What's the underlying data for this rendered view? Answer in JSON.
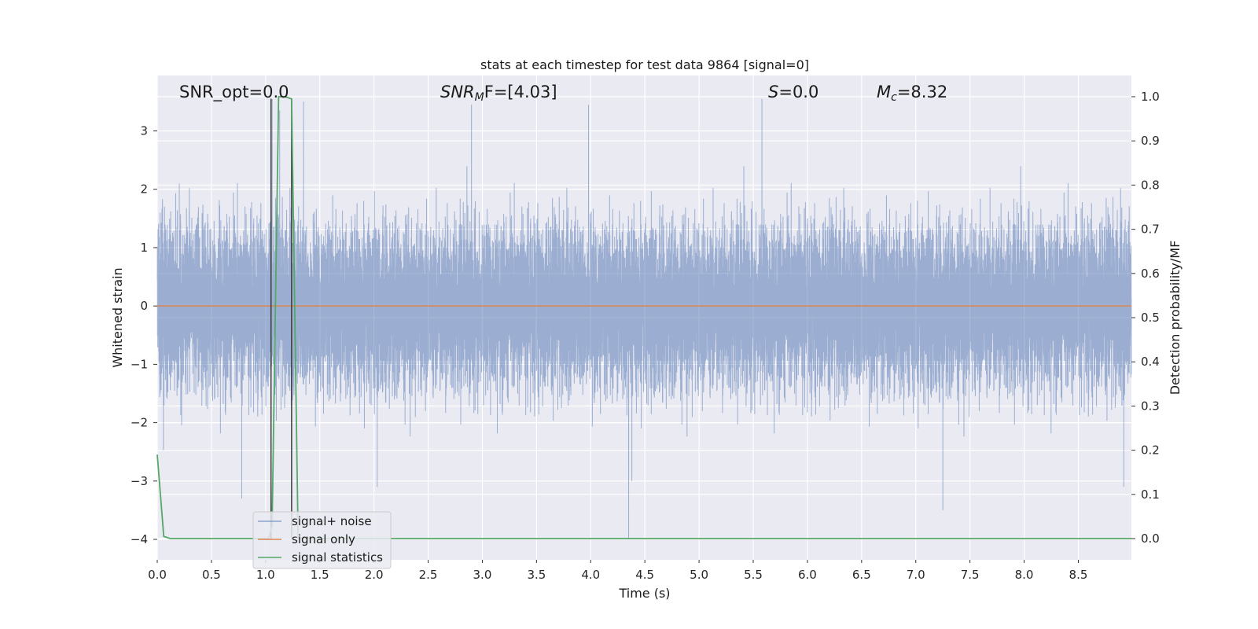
{
  "chart_data": {
    "type": "line",
    "title": "stats at each timestep for test data 9864 [signal=0]",
    "xlabel": "Time (s)",
    "ylabel": "Whitened strain",
    "y2label": "Detection probability/MF",
    "xlim": [
      0.0,
      8.99
    ],
    "ylim": [
      -4.35,
      3.95
    ],
    "y2lim": [
      -0.048,
      1.048
    ],
    "x_ticks": [
      0.0,
      0.5,
      1.0,
      1.5,
      2.0,
      2.5,
      3.0,
      3.5,
      4.0,
      4.5,
      5.0,
      5.5,
      6.0,
      6.5,
      7.0,
      7.5,
      8.0,
      8.5
    ],
    "x_tick_labels": [
      "0.0",
      "0.5",
      "1.0",
      "1.5",
      "2.0",
      "2.5",
      "3.0",
      "3.5",
      "4.0",
      "4.5",
      "5.0",
      "5.5",
      "6.0",
      "6.5",
      "7.0",
      "7.5",
      "8.0",
      "8.5"
    ],
    "y_ticks": [
      3,
      2,
      1,
      0,
      -1,
      -2,
      -3,
      -4
    ],
    "y_tick_labels": [
      "3",
      "2",
      "1",
      "0",
      "−1",
      "−2",
      "−3",
      "−4"
    ],
    "y2_ticks": [
      1.0,
      0.9,
      0.8,
      0.7,
      0.6,
      0.5,
      0.4,
      0.3,
      0.2,
      0.1,
      0.0
    ],
    "y2_tick_labels": [
      "1.0",
      "0.9",
      "0.8",
      "0.7",
      "0.6",
      "0.5",
      "0.4",
      "0.3",
      "0.2",
      "0.1",
      "0.0"
    ],
    "grid": true,
    "legend_position": "lower-left",
    "annotations": {
      "snr_opt": "SNR_opt=0.0",
      "snr_mf_main": "SNR",
      "snr_mf_sub": "M",
      "snr_mf_rest": "F=[4.03]",
      "s_main": "S",
      "s_rest": "=0.0",
      "mc_main": "M",
      "mc_sub": "c",
      "mc_rest": "=8.32"
    },
    "series": [
      {
        "name": "signal+ noise",
        "color": "#4c72b0",
        "alpha": 0.5,
        "axis": "left",
        "sample_rate": 2048,
        "amplitude_std": 0.9,
        "notable_peaks": [
          {
            "x": 0.78,
            "y": -3.3
          },
          {
            "x": 1.06,
            "y": 3.55
          },
          {
            "x": 1.13,
            "y": 3.35
          },
          {
            "x": 1.35,
            "y": 3.5
          },
          {
            "x": 2.03,
            "y": -3.1
          },
          {
            "x": 2.9,
            "y": 3.45
          },
          {
            "x": 3.98,
            "y": 3.45
          },
          {
            "x": 4.35,
            "y": -4.0
          },
          {
            "x": 4.38,
            "y": -3.0
          },
          {
            "x": 5.58,
            "y": 3.55
          },
          {
            "x": 7.25,
            "y": -3.5
          },
          {
            "x": 8.92,
            "y": -3.1
          }
        ]
      },
      {
        "name": "signal only",
        "color": "#dd8452",
        "axis": "left",
        "constant": 0.0
      },
      {
        "name": "signal statistics",
        "color": "#55a868",
        "axis": "right",
        "x": [
          0.0,
          0.06,
          0.12,
          0.18,
          1.0,
          1.03,
          1.06,
          1.12,
          1.18,
          1.24,
          1.3,
          1.36,
          1.42,
          8.99
        ],
        "values": [
          0.19,
          0.005,
          0.0,
          0.0,
          0.0,
          0.0,
          0.03,
          1.0,
          1.0,
          0.995,
          0.0,
          0.0,
          0.0,
          0.0
        ]
      }
    ],
    "markers": [
      {
        "x": 1.05,
        "color": "#333333"
      },
      {
        "x": 1.24,
        "color": "#333333"
      }
    ]
  }
}
